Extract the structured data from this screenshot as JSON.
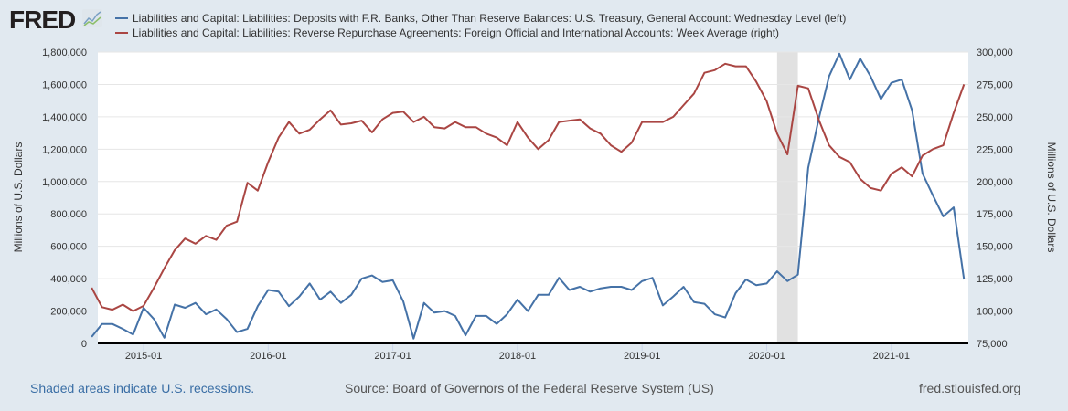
{
  "brand": {
    "logo_text": "FRED",
    "logo_icon": "line-chart-icon"
  },
  "footer": {
    "recession_note": "Shaded areas indicate U.S. recessions.",
    "source": "Source: Board of Governors of the Federal Reserve System (US)",
    "site": "fred.stlouisfed.org"
  },
  "chart_data": {
    "type": "line",
    "legend_placement": "top",
    "grid": true,
    "colors": {
      "series_0": "#4572a7",
      "series_1": "#aa4643",
      "recession": "#e1e1e1"
    },
    "recessions": [
      {
        "start": "2020-02",
        "end": "2020-04"
      }
    ],
    "xlim": [
      "2014-08",
      "2021-08"
    ],
    "x_ticks": [
      "2015-01",
      "2016-01",
      "2017-01",
      "2018-01",
      "2019-01",
      "2020-01",
      "2021-01"
    ],
    "y_left": {
      "label": "Millions of U.S. Dollars",
      "lim": [
        0,
        1800000
      ],
      "ticks": [
        "0",
        "200,000",
        "400,000",
        "600,000",
        "800,000",
        "1,000,000",
        "1,200,000",
        "1,400,000",
        "1,600,000",
        "1,800,000"
      ]
    },
    "y_right": {
      "label": "Millions of U.S. Dollars",
      "lim": [
        75000,
        300000
      ],
      "ticks": [
        "75,000",
        "100,000",
        "125,000",
        "150,000",
        "175,000",
        "200,000",
        "225,000",
        "250,000",
        "275,000",
        "300,000"
      ]
    },
    "series": [
      {
        "name": "Liabilities and Capital: Liabilities: Deposits with F.R. Banks, Other Than Reserve Balances: U.S. Treasury, General Account: Wednesday Level (left)",
        "axis": "left",
        "points": [
          [
            "2014-08",
            40000
          ],
          [
            "2014-09",
            120000
          ],
          [
            "2014-10",
            120000
          ],
          [
            "2014-11",
            90000
          ],
          [
            "2014-12",
            55000
          ],
          [
            "2015-01",
            220000
          ],
          [
            "2015-02",
            150000
          ],
          [
            "2015-03",
            35000
          ],
          [
            "2015-04",
            240000
          ],
          [
            "2015-05",
            220000
          ],
          [
            "2015-06",
            250000
          ],
          [
            "2015-07",
            180000
          ],
          [
            "2015-08",
            210000
          ],
          [
            "2015-09",
            150000
          ],
          [
            "2015-10",
            70000
          ],
          [
            "2015-11",
            90000
          ],
          [
            "2015-12",
            230000
          ],
          [
            "2016-01",
            330000
          ],
          [
            "2016-02",
            320000
          ],
          [
            "2016-03",
            230000
          ],
          [
            "2016-04",
            290000
          ],
          [
            "2016-05",
            370000
          ],
          [
            "2016-06",
            270000
          ],
          [
            "2016-07",
            320000
          ],
          [
            "2016-08",
            250000
          ],
          [
            "2016-09",
            300000
          ],
          [
            "2016-10",
            400000
          ],
          [
            "2016-11",
            420000
          ],
          [
            "2016-12",
            380000
          ],
          [
            "2017-01",
            390000
          ],
          [
            "2017-02",
            260000
          ],
          [
            "2017-03",
            30000
          ],
          [
            "2017-04",
            250000
          ],
          [
            "2017-05",
            190000
          ],
          [
            "2017-06",
            200000
          ],
          [
            "2017-07",
            170000
          ],
          [
            "2017-08",
            50000
          ],
          [
            "2017-09",
            170000
          ],
          [
            "2017-10",
            170000
          ],
          [
            "2017-11",
            120000
          ],
          [
            "2017-12",
            180000
          ],
          [
            "2018-01",
            270000
          ],
          [
            "2018-02",
            200000
          ],
          [
            "2018-03",
            300000
          ],
          [
            "2018-04",
            300000
          ],
          [
            "2018-05",
            405000
          ],
          [
            "2018-06",
            330000
          ],
          [
            "2018-07",
            350000
          ],
          [
            "2018-08",
            320000
          ],
          [
            "2018-09",
            340000
          ],
          [
            "2018-10",
            350000
          ],
          [
            "2018-11",
            350000
          ],
          [
            "2018-12",
            330000
          ],
          [
            "2019-01",
            385000
          ],
          [
            "2019-02",
            405000
          ],
          [
            "2019-03",
            235000
          ],
          [
            "2019-04",
            290000
          ],
          [
            "2019-05",
            350000
          ],
          [
            "2019-06",
            255000
          ],
          [
            "2019-07",
            245000
          ],
          [
            "2019-08",
            180000
          ],
          [
            "2019-09",
            160000
          ],
          [
            "2019-10",
            310000
          ],
          [
            "2019-11",
            395000
          ],
          [
            "2019-12",
            360000
          ],
          [
            "2020-01",
            370000
          ],
          [
            "2020-02",
            445000
          ],
          [
            "2020-03",
            385000
          ],
          [
            "2020-04",
            425000
          ],
          [
            "2020-05",
            1085000
          ],
          [
            "2020-06",
            1385000
          ],
          [
            "2020-07",
            1650000
          ],
          [
            "2020-08",
            1790000
          ],
          [
            "2020-09",
            1630000
          ],
          [
            "2020-10",
            1760000
          ],
          [
            "2020-11",
            1650000
          ],
          [
            "2020-12",
            1510000
          ],
          [
            "2021-01",
            1610000
          ],
          [
            "2021-02",
            1630000
          ],
          [
            "2021-03",
            1440000
          ],
          [
            "2021-04",
            1050000
          ],
          [
            "2021-05",
            915000
          ],
          [
            "2021-06",
            785000
          ],
          [
            "2021-07",
            840000
          ],
          [
            "2021-08",
            395000
          ]
        ]
      },
      {
        "name": "Liabilities and Capital: Liabilities: Reverse Repurchase Agreements: Foreign Official and International Accounts: Week Average (right)",
        "axis": "right",
        "points": [
          [
            "2014-08",
            118000
          ],
          [
            "2014-09",
            103000
          ],
          [
            "2014-10",
            101000
          ],
          [
            "2014-11",
            105000
          ],
          [
            "2014-12",
            100000
          ],
          [
            "2015-01",
            104000
          ],
          [
            "2015-02",
            118000
          ],
          [
            "2015-03",
            133000
          ],
          [
            "2015-04",
            147000
          ],
          [
            "2015-05",
            156000
          ],
          [
            "2015-06",
            152000
          ],
          [
            "2015-07",
            158000
          ],
          [
            "2015-08",
            155000
          ],
          [
            "2015-09",
            166000
          ],
          [
            "2015-10",
            169000
          ],
          [
            "2015-11",
            199000
          ],
          [
            "2015-12",
            193000
          ],
          [
            "2016-01",
            215000
          ],
          [
            "2016-02",
            234000
          ],
          [
            "2016-03",
            246000
          ],
          [
            "2016-04",
            237000
          ],
          [
            "2016-05",
            240000
          ],
          [
            "2016-06",
            248000
          ],
          [
            "2016-07",
            255000
          ],
          [
            "2016-08",
            244000
          ],
          [
            "2016-09",
            245000
          ],
          [
            "2016-10",
            247000
          ],
          [
            "2016-11",
            238000
          ],
          [
            "2016-12",
            248000
          ],
          [
            "2017-01",
            253000
          ],
          [
            "2017-02",
            254000
          ],
          [
            "2017-03",
            246000
          ],
          [
            "2017-04",
            250000
          ],
          [
            "2017-05",
            242000
          ],
          [
            "2017-06",
            241000
          ],
          [
            "2017-07",
            246000
          ],
          [
            "2017-08",
            242000
          ],
          [
            "2017-09",
            242000
          ],
          [
            "2017-10",
            237000
          ],
          [
            "2017-11",
            234000
          ],
          [
            "2017-12",
            228000
          ],
          [
            "2018-01",
            246000
          ],
          [
            "2018-02",
            234000
          ],
          [
            "2018-03",
            225000
          ],
          [
            "2018-04",
            232000
          ],
          [
            "2018-05",
            246000
          ],
          [
            "2018-06",
            247000
          ],
          [
            "2018-07",
            248000
          ],
          [
            "2018-08",
            241000
          ],
          [
            "2018-09",
            237000
          ],
          [
            "2018-10",
            228000
          ],
          [
            "2018-11",
            223000
          ],
          [
            "2018-12",
            230000
          ],
          [
            "2019-01",
            246000
          ],
          [
            "2019-02",
            246000
          ],
          [
            "2019-03",
            246000
          ],
          [
            "2019-04",
            250000
          ],
          [
            "2019-05",
            259000
          ],
          [
            "2019-06",
            268000
          ],
          [
            "2019-07",
            284000
          ],
          [
            "2019-08",
            286000
          ],
          [
            "2019-09",
            291000
          ],
          [
            "2019-10",
            289000
          ],
          [
            "2019-11",
            289000
          ],
          [
            "2019-12",
            277000
          ],
          [
            "2020-01",
            262000
          ],
          [
            "2020-02",
            237000
          ],
          [
            "2020-03",
            221000
          ],
          [
            "2020-04",
            274000
          ],
          [
            "2020-05",
            272000
          ],
          [
            "2020-06",
            248000
          ],
          [
            "2020-07",
            228000
          ],
          [
            "2020-08",
            219000
          ],
          [
            "2020-09",
            215000
          ],
          [
            "2020-10",
            202000
          ],
          [
            "2020-11",
            195000
          ],
          [
            "2020-12",
            193000
          ],
          [
            "2021-01",
            206000
          ],
          [
            "2021-02",
            211000
          ],
          [
            "2021-03",
            204000
          ],
          [
            "2021-04",
            220000
          ],
          [
            "2021-05",
            225000
          ],
          [
            "2021-06",
            228000
          ],
          [
            "2021-07",
            253000
          ],
          [
            "2021-08",
            275000
          ]
        ]
      }
    ]
  }
}
